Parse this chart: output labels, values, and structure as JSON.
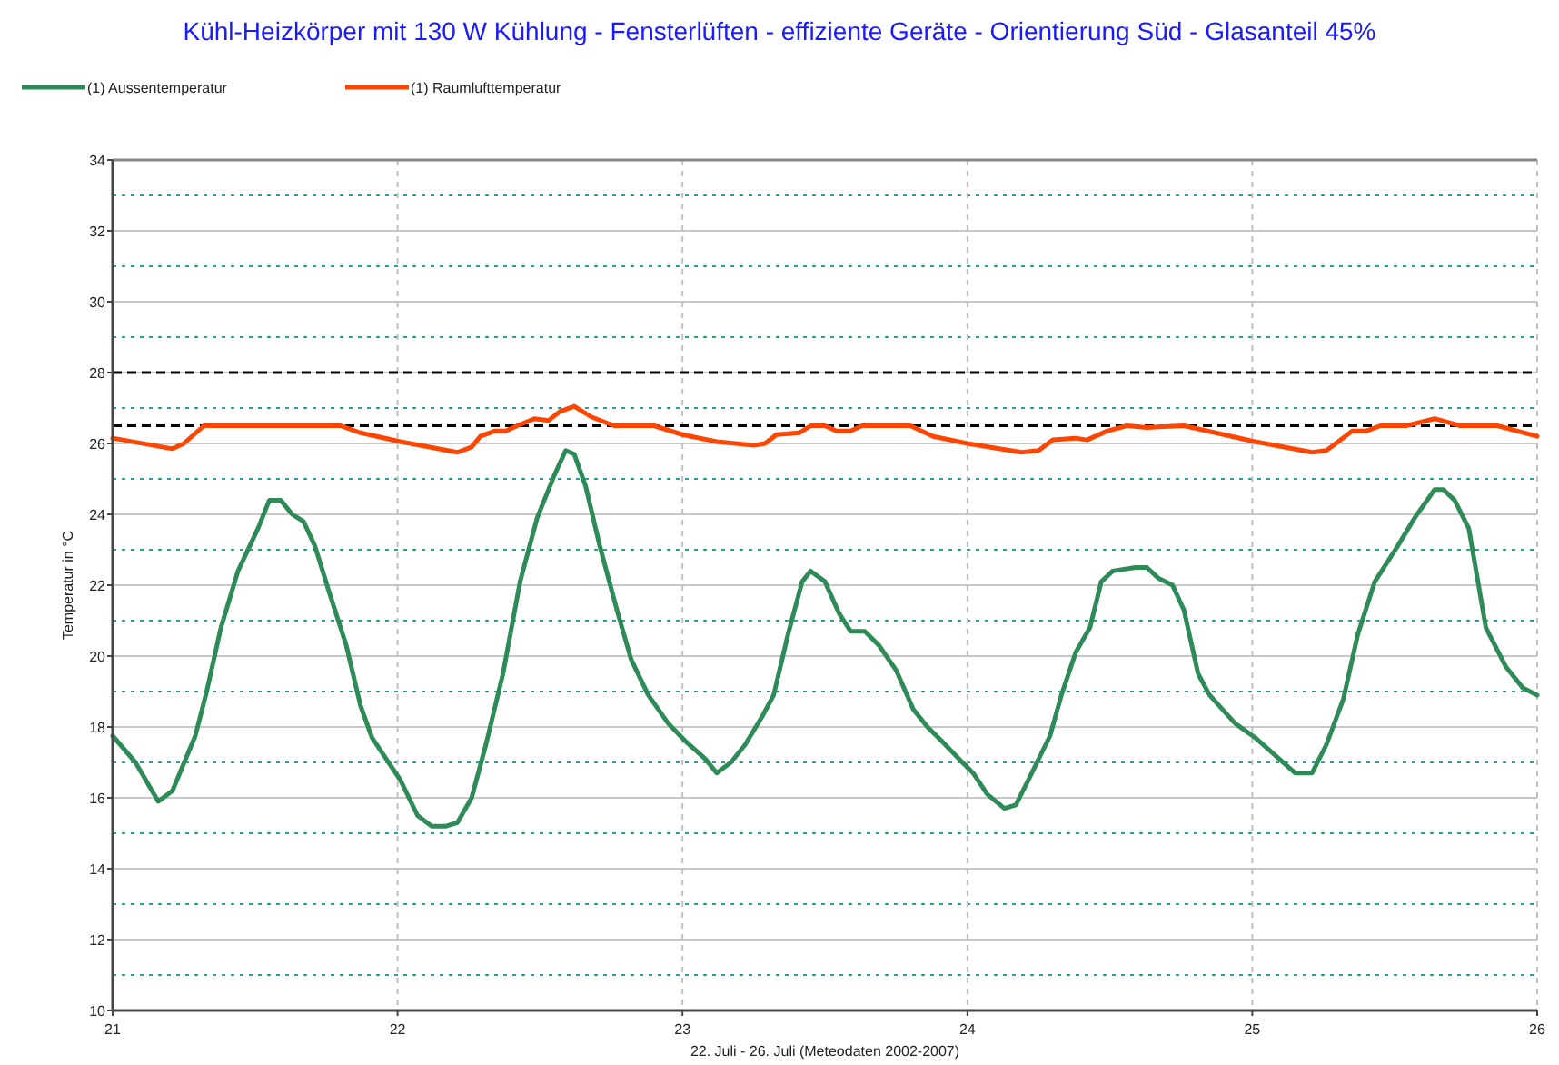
{
  "chart_data": {
    "type": "line",
    "title": "Kühl-Heizkörper mit 130 W Kühlung - Fensterlüften - effiziente Geräte - Orientierung Süd - Glasanteil 45%",
    "xlabel": "22. Juli - 26. Juli (Meteodaten 2002-2007)",
    "ylabel": "Temperatur in °C",
    "xlim": [
      21,
      26
    ],
    "xticks": [
      21,
      22,
      23,
      24,
      25,
      26
    ],
    "ylim": [
      10,
      34
    ],
    "yticks": [
      10,
      {
        "value": 11,
        "label": null
      },
      12,
      {
        "value": 13,
        "label": null
      },
      14,
      {
        "value": 15,
        "label": null
      },
      16,
      {
        "value": 17,
        "label": null
      },
      18,
      {
        "value": 19,
        "label": null
      },
      20,
      {
        "value": 21,
        "label": null
      },
      22,
      {
        "value": 23,
        "label": null
      },
      24,
      {
        "value": 25,
        "label": null
      },
      26,
      {
        "value": 27,
        "label": null
      },
      28,
      {
        "value": 29,
        "label": null
      },
      30,
      {
        "value": 31,
        "label": null
      },
      32,
      {
        "value": 33,
        "label": null
      },
      34
    ],
    "grid": true,
    "legend": "top left",
    "line_style": "solid",
    "ref_lines": [
      {
        "axis": "y",
        "value": 28,
        "color": "#000000",
        "line_style": "dashed"
      },
      {
        "axis": "y",
        "value": 26.5,
        "color": "#000000",
        "line_style": "dashed"
      }
    ],
    "series": [
      {
        "name": "(1) Aussentemperatur",
        "color": "#2e8b57",
        "x": [
          21.0,
          21.08,
          21.16,
          21.21,
          21.29,
          21.33,
          21.38,
          21.44,
          21.51,
          21.55,
          21.59,
          21.63,
          21.67,
          21.71,
          21.76,
          21.82,
          21.87,
          21.91,
          21.96,
          22.01,
          22.07,
          22.12,
          22.17,
          22.21,
          22.26,
          22.31,
          22.37,
          22.43,
          22.49,
          22.55,
          22.59,
          22.62,
          22.66,
          22.71,
          22.77,
          22.82,
          22.88,
          22.95,
          23.01,
          23.08,
          23.12,
          23.17,
          23.22,
          23.28,
          23.32,
          23.37,
          23.42,
          23.45,
          23.5,
          23.55,
          23.59,
          23.64,
          23.69,
          23.75,
          23.81,
          23.86,
          23.91,
          23.97,
          24.02,
          24.07,
          24.13,
          24.17,
          24.22,
          24.29,
          24.33,
          24.38,
          24.43,
          24.47,
          24.51,
          24.59,
          24.63,
          24.67,
          24.72,
          24.76,
          24.81,
          24.85,
          24.94,
          25.01,
          25.08,
          25.15,
          25.21,
          25.26,
          25.32,
          25.37,
          25.43,
          25.51,
          25.57,
          25.64,
          25.67,
          25.71,
          25.76,
          25.82,
          25.89,
          25.95,
          26.0
        ],
        "values": [
          17.75,
          17.0,
          15.9,
          16.2,
          17.75,
          19.0,
          20.8,
          22.4,
          23.6,
          24.4,
          24.4,
          24.0,
          23.8,
          23.1,
          21.8,
          20.3,
          18.6,
          17.7,
          17.1,
          16.5,
          15.5,
          15.2,
          15.2,
          15.3,
          16.0,
          17.5,
          19.5,
          22.1,
          23.9,
          25.1,
          25.8,
          25.7,
          24.8,
          23.1,
          21.3,
          19.9,
          18.9,
          18.1,
          17.6,
          17.1,
          16.7,
          17.0,
          17.5,
          18.3,
          18.9,
          20.6,
          22.1,
          22.4,
          22.1,
          21.2,
          20.7,
          20.7,
          20.3,
          19.6,
          18.5,
          18.0,
          17.6,
          17.1,
          16.7,
          16.1,
          15.7,
          15.8,
          16.6,
          17.75,
          18.9,
          20.1,
          20.8,
          22.1,
          22.4,
          22.5,
          22.5,
          22.2,
          22.0,
          21.3,
          19.5,
          18.9,
          18.1,
          17.7,
          17.2,
          16.7,
          16.7,
          17.5,
          18.8,
          20.6,
          22.1,
          23.1,
          23.9,
          24.7,
          24.7,
          24.4,
          23.6,
          20.8,
          19.7,
          19.1,
          18.9
        ]
      },
      {
        "name": "(1) Raumlufttemperatur",
        "color": "#ff4500",
        "x": [
          21.0,
          21.21,
          21.25,
          21.32,
          21.8,
          21.87,
          22.01,
          22.21,
          22.26,
          22.29,
          22.34,
          22.38,
          22.42,
          22.48,
          22.53,
          22.57,
          22.62,
          22.68,
          22.76,
          22.9,
          23.0,
          23.12,
          23.25,
          23.29,
          23.33,
          23.41,
          23.45,
          23.5,
          23.54,
          23.59,
          23.63,
          23.8,
          23.88,
          24.0,
          24.19,
          24.25,
          24.3,
          24.38,
          24.42,
          24.49,
          24.56,
          24.63,
          24.76,
          25.01,
          25.21,
          25.26,
          25.31,
          25.35,
          25.4,
          25.45,
          25.54,
          25.64,
          25.73,
          25.86,
          26.0
        ],
        "values": [
          26.15,
          25.85,
          26.0,
          26.5,
          26.5,
          26.3,
          26.05,
          25.75,
          25.9,
          26.2,
          26.35,
          26.35,
          26.5,
          26.7,
          26.65,
          26.9,
          27.05,
          26.75,
          26.5,
          26.5,
          26.25,
          26.05,
          25.95,
          26.0,
          26.25,
          26.3,
          26.5,
          26.5,
          26.35,
          26.35,
          26.5,
          26.5,
          26.2,
          26.0,
          25.75,
          25.8,
          26.1,
          26.15,
          26.1,
          26.35,
          26.5,
          26.45,
          26.5,
          26.05,
          25.75,
          25.8,
          26.1,
          26.35,
          26.35,
          26.5,
          26.5,
          26.7,
          26.5,
          26.5,
          26.2
        ]
      }
    ]
  }
}
